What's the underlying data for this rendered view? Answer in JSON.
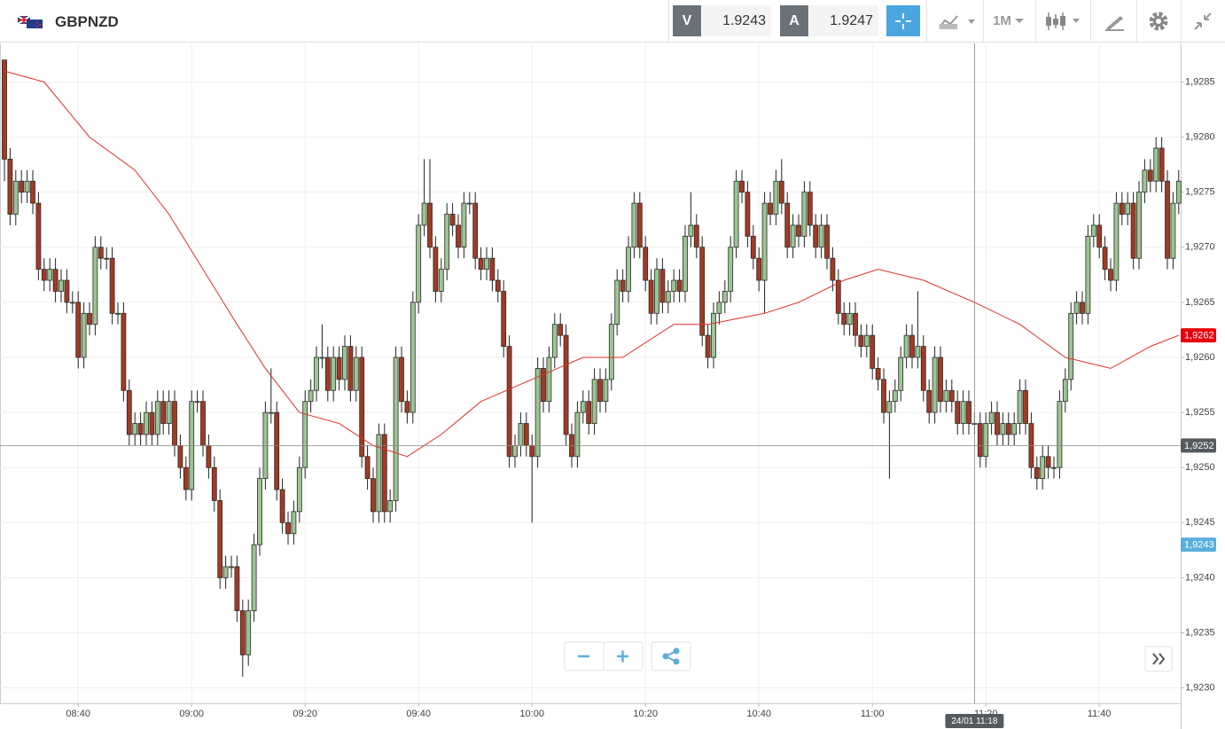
{
  "header": {
    "symbol": "GBPNZD",
    "sell_label": "V",
    "sell_price": "1.9243",
    "buy_label": "A",
    "buy_price": "1.9247",
    "timeframe": "1M"
  },
  "chart_data": {
    "type": "candlestick",
    "x": [
      "08:27",
      "08:28",
      "08:29",
      "08:30",
      "08:31",
      "08:32",
      "08:33",
      "08:34",
      "08:35",
      "08:36",
      "08:37",
      "08:38",
      "08:39",
      "08:40",
      "08:41",
      "08:42",
      "08:43",
      "08:44",
      "08:45",
      "08:46",
      "08:47",
      "08:48",
      "08:49",
      "08:50",
      "08:51",
      "08:52",
      "08:53",
      "08:54",
      "08:55",
      "08:56",
      "08:57",
      "08:58",
      "08:59",
      "09:00",
      "09:01",
      "09:02",
      "09:03",
      "09:04",
      "09:05",
      "09:06",
      "09:07",
      "09:08",
      "09:09",
      "09:10",
      "09:11",
      "09:12",
      "09:13",
      "09:14",
      "09:15",
      "09:16",
      "09:17",
      "09:18",
      "09:19",
      "09:20",
      "09:21",
      "09:22",
      "09:23",
      "09:24",
      "09:25",
      "09:26",
      "09:27",
      "09:28",
      "09:29",
      "09:30",
      "09:31",
      "09:32",
      "09:33",
      "09:34",
      "09:35",
      "09:36",
      "09:37",
      "09:38",
      "09:39",
      "09:40",
      "09:41",
      "09:42",
      "09:43",
      "09:44",
      "09:45",
      "09:46",
      "09:47",
      "09:48",
      "09:49",
      "09:50",
      "09:51",
      "09:52",
      "09:53",
      "09:54",
      "09:55",
      "09:56",
      "09:57",
      "09:58",
      "09:59",
      "10:00",
      "10:01",
      "10:02",
      "10:03",
      "10:04",
      "10:05",
      "10:06",
      "10:07",
      "10:08",
      "10:09",
      "10:10",
      "10:11",
      "10:12",
      "10:13",
      "10:14",
      "10:15",
      "10:16",
      "10:17",
      "10:18",
      "10:19",
      "10:20",
      "10:21",
      "10:22",
      "10:23",
      "10:24",
      "10:25",
      "10:26",
      "10:27",
      "10:28",
      "10:29",
      "10:30",
      "10:31",
      "10:32",
      "10:33",
      "10:34",
      "10:35",
      "10:36",
      "10:37",
      "10:38",
      "10:39",
      "10:40",
      "10:41",
      "10:42",
      "10:43",
      "10:44",
      "10:45",
      "10:46",
      "10:47",
      "10:48",
      "10:49",
      "10:50",
      "10:51",
      "10:52",
      "10:53",
      "10:54",
      "10:55",
      "10:56",
      "10:57",
      "10:58",
      "10:59",
      "11:00",
      "11:01",
      "11:02",
      "11:03",
      "11:04",
      "11:05",
      "11:06",
      "11:07",
      "11:08",
      "11:09",
      "11:10",
      "11:11",
      "11:12",
      "11:13",
      "11:14",
      "11:15",
      "11:16",
      "11:17",
      "11:18",
      "11:19",
      "11:20",
      "11:21",
      "11:22",
      "11:23",
      "11:24",
      "11:25",
      "11:26",
      "11:27",
      "11:28",
      "11:29",
      "11:30",
      "11:31",
      "11:32",
      "11:33",
      "11:34",
      "11:35",
      "11:36",
      "11:37",
      "11:38",
      "11:39",
      "11:40",
      "11:41",
      "11:42",
      "11:43",
      "11:44",
      "11:45",
      "11:46",
      "11:47",
      "11:48",
      "11:49",
      "11:50",
      "11:51",
      "11:52",
      "11:53",
      "11:54"
    ],
    "open": [
      1.9287,
      1.9278,
      1.9273,
      1.9276,
      1.9275,
      1.9276,
      1.9274,
      1.9268,
      1.9267,
      1.9268,
      1.9266,
      1.9267,
      1.9265,
      1.9265,
      1.926,
      1.9264,
      1.9263,
      1.927,
      1.9269,
      1.9269,
      1.9264,
      1.9264,
      1.9257,
      1.9253,
      1.9254,
      1.9253,
      1.9255,
      1.9253,
      1.9256,
      1.9254,
      1.9256,
      1.9252,
      1.925,
      1.9248,
      1.9256,
      1.9256,
      1.9252,
      1.925,
      1.9247,
      1.924,
      1.9241,
      1.9241,
      1.9237,
      1.9233,
      1.9237,
      1.9243,
      1.9249,
      1.9255,
      1.9255,
      1.9248,
      1.9245,
      1.9244,
      1.9246,
      1.925,
      1.9256,
      1.9257,
      1.926,
      1.926,
      1.9257,
      1.926,
      1.9258,
      1.9261,
      1.9257,
      1.926,
      1.9251,
      1.9249,
      1.9246,
      1.9253,
      1.9246,
      1.9247,
      1.926,
      1.9256,
      1.9255,
      1.9265,
      1.9272,
      1.9274,
      1.927,
      1.9266,
      1.9268,
      1.9273,
      1.9272,
      1.927,
      1.9274,
      1.9274,
      1.9269,
      1.9268,
      1.9269,
      1.9267,
      1.9266,
      1.9261,
      1.9251,
      1.9252,
      1.9254,
      1.9252,
      1.9251,
      1.9259,
      1.9256,
      1.926,
      1.9263,
      1.9262,
      1.9253,
      1.9251,
      1.9255,
      1.9256,
      1.9254,
      1.9258,
      1.9256,
      1.9258,
      1.9263,
      1.9267,
      1.9266,
      1.927,
      1.9274,
      1.927,
      1.9267,
      1.9264,
      1.9268,
      1.9265,
      1.9266,
      1.9267,
      1.9266,
      1.9271,
      1.9272,
      1.927,
      1.9262,
      1.926,
      1.9264,
      1.9265,
      1.9266,
      1.927,
      1.9276,
      1.9275,
      1.9271,
      1.9269,
      1.9267,
      1.9274,
      1.9273,
      1.9276,
      1.9274,
      1.927,
      1.9272,
      1.9271,
      1.9275,
      1.9272,
      1.927,
      1.9272,
      1.9269,
      1.9267,
      1.9264,
      1.9263,
      1.9264,
      1.9262,
      1.9261,
      1.9262,
      1.9259,
      1.9258,
      1.9255,
      1.9256,
      1.9257,
      1.926,
      1.9262,
      1.926,
      1.9261,
      1.9257,
      1.9255,
      1.926,
      1.9256,
      1.9257,
      1.9256,
      1.9254,
      1.9256,
      1.9254,
      1.9254,
      1.9251,
      1.9254,
      1.9255,
      1.9253,
      1.9254,
      1.9253,
      1.9254,
      1.9257,
      1.9254,
      1.925,
      1.9249,
      1.9251,
      1.925,
      1.925,
      1.9256,
      1.9258,
      1.9264,
      1.9265,
      1.9264,
      1.9271,
      1.9272,
      1.927,
      1.9268,
      1.9267,
      1.9274,
      1.9273,
      1.9274,
      1.9269,
      1.9275,
      1.9277,
      1.9276,
      1.9279,
      1.9276,
      1.9269,
      1.9274
    ],
    "high": [
      1.9287,
      1.9279,
      1.9277,
      1.9277,
      1.9277,
      1.9277,
      1.9275,
      1.9269,
      1.9269,
      1.9269,
      1.9268,
      1.9268,
      1.9266,
      1.9266,
      1.9265,
      1.9265,
      1.9271,
      1.9271,
      1.927,
      1.927,
      1.9265,
      1.9265,
      1.9258,
      1.9255,
      1.9255,
      1.9256,
      1.9256,
      1.9257,
      1.9257,
      1.9257,
      1.9257,
      1.9253,
      1.9251,
      1.9257,
      1.9257,
      1.9257,
      1.9253,
      1.9251,
      1.9248,
      1.9242,
      1.9242,
      1.9242,
      1.9238,
      1.9238,
      1.9244,
      1.925,
      1.9256,
      1.9259,
      1.9256,
      1.9249,
      1.9246,
      1.9247,
      1.9251,
      1.9257,
      1.9258,
      1.9261,
      1.9263,
      1.9261,
      1.9261,
      1.9261,
      1.9262,
      1.9262,
      1.9261,
      1.9261,
      1.9252,
      1.925,
      1.9254,
      1.9254,
      1.9248,
      1.9261,
      1.9261,
      1.9257,
      1.9266,
      1.9273,
      1.9278,
      1.9278,
      1.9271,
      1.9269,
      1.9274,
      1.9274,
      1.9273,
      1.9275,
      1.9275,
      1.9275,
      1.927,
      1.927,
      1.927,
      1.9268,
      1.9267,
      1.9262,
      1.9253,
      1.9255,
      1.9255,
      1.9253,
      1.926,
      1.926,
      1.9261,
      1.9264,
      1.9264,
      1.9263,
      1.9254,
      1.9256,
      1.9257,
      1.9257,
      1.9259,
      1.9259,
      1.9259,
      1.9264,
      1.9268,
      1.9268,
      1.9271,
      1.9275,
      1.9275,
      1.9271,
      1.9268,
      1.9269,
      1.9269,
      1.9267,
      1.9268,
      1.9268,
      1.9272,
      1.9275,
      1.9273,
      1.9271,
      1.9263,
      1.9265,
      1.9266,
      1.9267,
      1.9271,
      1.9277,
      1.9277,
      1.9276,
      1.9272,
      1.927,
      1.9275,
      1.9275,
      1.9277,
      1.9278,
      1.9275,
      1.9273,
      1.9273,
      1.9276,
      1.9276,
      1.9273,
      1.9273,
      1.9273,
      1.927,
      1.9268,
      1.9265,
      1.9265,
      1.9265,
      1.9263,
      1.9263,
      1.9263,
      1.926,
      1.9259,
      1.9257,
      1.9258,
      1.9261,
      1.9263,
      1.9263,
      1.9266,
      1.9262,
      1.9258,
      1.9261,
      1.9261,
      1.9258,
      1.9258,
      1.9257,
      1.9257,
      1.9257,
      1.9255,
      1.9255,
      1.9255,
      1.9256,
      1.9256,
      1.9255,
      1.9255,
      1.9255,
      1.9258,
      1.9258,
      1.9255,
      1.9251,
      1.9252,
      1.9252,
      1.9251,
      1.9257,
      1.9259,
      1.9265,
      1.9266,
      1.9266,
      1.9272,
      1.9273,
      1.9273,
      1.9271,
      1.9269,
      1.9275,
      1.9275,
      1.9275,
      1.9275,
      1.9276,
      1.9278,
      1.9278,
      1.928,
      1.928,
      1.9277,
      1.9275,
      1.9277
    ],
    "low": [
      1.9276,
      1.9272,
      1.9272,
      1.9274,
      1.9274,
      1.9273,
      1.9267,
      1.9266,
      1.9266,
      1.9265,
      1.9265,
      1.9264,
      1.9264,
      1.9259,
      1.9259,
      1.9262,
      1.9262,
      1.9268,
      1.9268,
      1.9263,
      1.9263,
      1.9256,
      1.9252,
      1.9252,
      1.9252,
      1.9252,
      1.9252,
      1.9252,
      1.9253,
      1.9253,
      1.9251,
      1.9249,
      1.9247,
      1.9247,
      1.9255,
      1.9251,
      1.9249,
      1.9246,
      1.9239,
      1.9239,
      1.924,
      1.9236,
      1.9231,
      1.9232,
      1.9236,
      1.9242,
      1.9248,
      1.9254,
      1.9247,
      1.9244,
      1.9243,
      1.9243,
      1.9245,
      1.9249,
      1.9255,
      1.9256,
      1.9259,
      1.9256,
      1.9256,
      1.9257,
      1.9257,
      1.9256,
      1.9256,
      1.925,
      1.9248,
      1.9245,
      1.9245,
      1.9245,
      1.9245,
      1.9246,
      1.9255,
      1.9254,
      1.9254,
      1.9264,
      1.9271,
      1.9269,
      1.9265,
      1.9265,
      1.9267,
      1.9271,
      1.9269,
      1.9269,
      1.9273,
      1.9268,
      1.9267,
      1.9267,
      1.9266,
      1.9265,
      1.926,
      1.925,
      1.925,
      1.9251,
      1.9251,
      1.9245,
      1.925,
      1.9255,
      1.9255,
      1.9259,
      1.9261,
      1.9252,
      1.925,
      1.925,
      1.9254,
      1.9253,
      1.9253,
      1.9255,
      1.9255,
      1.9257,
      1.9262,
      1.9265,
      1.9265,
      1.9269,
      1.9269,
      1.9266,
      1.9263,
      1.9263,
      1.9264,
      1.9264,
      1.9265,
      1.9265,
      1.9265,
      1.927,
      1.9269,
      1.9261,
      1.9259,
      1.9259,
      1.9263,
      1.9264,
      1.9265,
      1.9269,
      1.9274,
      1.927,
      1.9268,
      1.9266,
      1.9264,
      1.9272,
      1.9272,
      1.9273,
      1.9269,
      1.9269,
      1.927,
      1.927,
      1.9271,
      1.9269,
      1.9269,
      1.9268,
      1.9266,
      1.9263,
      1.9262,
      1.9262,
      1.9261,
      1.926,
      1.926,
      1.9258,
      1.9257,
      1.9254,
      1.9249,
      1.9255,
      1.9256,
      1.9259,
      1.9259,
      1.9259,
      1.9256,
      1.9254,
      1.9254,
      1.9255,
      1.9255,
      1.9255,
      1.9253,
      1.9253,
      1.9253,
      1.9253,
      1.925,
      1.925,
      1.9253,
      1.9252,
      1.9252,
      1.9252,
      1.9252,
      1.9253,
      1.9253,
      1.9249,
      1.9248,
      1.9248,
      1.9249,
      1.9249,
      1.9249,
      1.9255,
      1.9257,
      1.9263,
      1.9263,
      1.9263,
      1.927,
      1.9269,
      1.9267,
      1.9266,
      1.9266,
      1.9272,
      1.9272,
      1.9268,
      1.9268,
      1.9274,
      1.9275,
      1.9275,
      1.9275,
      1.9268,
      1.9268,
      1.9273
    ],
    "close": [
      1.9278,
      1.9273,
      1.9276,
      1.9275,
      1.9276,
      1.9274,
      1.9268,
      1.9267,
      1.9268,
      1.9266,
      1.9267,
      1.9265,
      1.9265,
      1.926,
      1.9264,
      1.9263,
      1.927,
      1.9269,
      1.9269,
      1.9264,
      1.9264,
      1.9257,
      1.9253,
      1.9254,
      1.9253,
      1.9255,
      1.9253,
      1.9256,
      1.9254,
      1.9256,
      1.9252,
      1.925,
      1.9248,
      1.9256,
      1.9256,
      1.9252,
      1.925,
      1.9247,
      1.924,
      1.9241,
      1.9241,
      1.9237,
      1.9233,
      1.9237,
      1.9243,
      1.9249,
      1.9255,
      1.9255,
      1.9248,
      1.9245,
      1.9244,
      1.9246,
      1.925,
      1.9256,
      1.9257,
      1.926,
      1.926,
      1.9257,
      1.926,
      1.9258,
      1.9261,
      1.9257,
      1.926,
      1.9251,
      1.9249,
      1.9246,
      1.9253,
      1.9246,
      1.9247,
      1.926,
      1.9256,
      1.9255,
      1.9265,
      1.9272,
      1.9274,
      1.927,
      1.9266,
      1.9268,
      1.9273,
      1.9272,
      1.927,
      1.9274,
      1.9274,
      1.9269,
      1.9268,
      1.9269,
      1.9267,
      1.9266,
      1.9261,
      1.9251,
      1.9252,
      1.9254,
      1.9252,
      1.9251,
      1.9259,
      1.9256,
      1.926,
      1.9263,
      1.9262,
      1.9253,
      1.9251,
      1.9255,
      1.9256,
      1.9254,
      1.9258,
      1.9256,
      1.9258,
      1.9263,
      1.9267,
      1.9266,
      1.927,
      1.9274,
      1.927,
      1.9267,
      1.9264,
      1.9268,
      1.9265,
      1.9266,
      1.9267,
      1.9266,
      1.9271,
      1.9272,
      1.927,
      1.9262,
      1.926,
      1.9264,
      1.9265,
      1.9266,
      1.927,
      1.9276,
      1.9275,
      1.9271,
      1.9269,
      1.9267,
      1.9274,
      1.9273,
      1.9276,
      1.9274,
      1.927,
      1.9272,
      1.9271,
      1.9275,
      1.9272,
      1.927,
      1.9272,
      1.9269,
      1.9267,
      1.9264,
      1.9263,
      1.9264,
      1.9262,
      1.9261,
      1.9262,
      1.9259,
      1.9258,
      1.9255,
      1.9256,
      1.9257,
      1.926,
      1.9262,
      1.926,
      1.9261,
      1.9257,
      1.9255,
      1.926,
      1.9256,
      1.9257,
      1.9256,
      1.9254,
      1.9256,
      1.9254,
      1.9254,
      1.9251,
      1.9254,
      1.9255,
      1.9253,
      1.9254,
      1.9253,
      1.9254,
      1.9257,
      1.9254,
      1.925,
      1.9249,
      1.9251,
      1.925,
      1.925,
      1.9256,
      1.9258,
      1.9264,
      1.9265,
      1.9264,
      1.9271,
      1.9272,
      1.927,
      1.9268,
      1.9267,
      1.9274,
      1.9273,
      1.9274,
      1.9269,
      1.9275,
      1.9277,
      1.9276,
      1.9279,
      1.9276,
      1.9269,
      1.9274,
      1.9276
    ],
    "up_color": "#9cc592",
    "down_color": "#a33a22",
    "moving_average": {
      "color": "#e0302a",
      "x": [
        "08:27",
        "08:34",
        "08:42",
        "08:50",
        "08:56",
        "09:02",
        "09:08",
        "09:13",
        "09:19",
        "09:26",
        "09:32",
        "09:38",
        "09:44",
        "09:51",
        "10:00",
        "10:09",
        "10:16",
        "10:25",
        "10:31",
        "10:41",
        "10:47",
        "10:55",
        "11:01",
        "11:09",
        "11:18",
        "11:26",
        "11:34",
        "11:42",
        "11:49",
        "11:54"
      ],
      "values": [
        1.9286,
        1.9285,
        1.928,
        1.9277,
        1.9273,
        1.9268,
        1.9263,
        1.9259,
        1.9255,
        1.9254,
        1.9252,
        1.9251,
        1.9253,
        1.9256,
        1.9258,
        1.926,
        1.926,
        1.9263,
        1.9263,
        1.9264,
        1.9265,
        1.9267,
        1.9268,
        1.9267,
        1.9265,
        1.9263,
        1.926,
        1.9259,
        1.9261,
        1.9262
      ]
    },
    "ylim": [
      1.92286,
      1.92885
    ],
    "yticks": [
      {
        "value": 1.923,
        "label": "1,9230"
      },
      {
        "value": 1.9235,
        "label": "1,9235"
      },
      {
        "value": 1.924,
        "label": "1,9240"
      },
      {
        "value": 1.9245,
        "label": "1,9245"
      },
      {
        "value": 1.925,
        "label": "1,9250"
      },
      {
        "value": 1.9255,
        "label": "1,9255"
      },
      {
        "value": 1.926,
        "label": "1,9260"
      },
      {
        "value": 1.9265,
        "label": "1,9265"
      },
      {
        "value": 1.927,
        "label": "1,9270"
      },
      {
        "value": 1.9275,
        "label": "1,9275"
      },
      {
        "value": 1.928,
        "label": "1,9280"
      },
      {
        "value": 1.9285,
        "label": "1,9285"
      }
    ],
    "xticks": [
      "08:40",
      "09:00",
      "09:20",
      "09:40",
      "10:00",
      "10:20",
      "10:40",
      "11:00",
      "11:20",
      "11:40"
    ],
    "grid": true,
    "price_labels": [
      {
        "value": 1.9262,
        "label": "1,9262",
        "color": "#e8000b"
      },
      {
        "value": 1.9243,
        "label": "1,9243",
        "color": "#5aaedb"
      }
    ],
    "crosshair": {
      "x": "11:18",
      "x_label": "24/01 11:18",
      "value": 1.9252,
      "label": "1,9252",
      "color": "#555a5f"
    }
  }
}
